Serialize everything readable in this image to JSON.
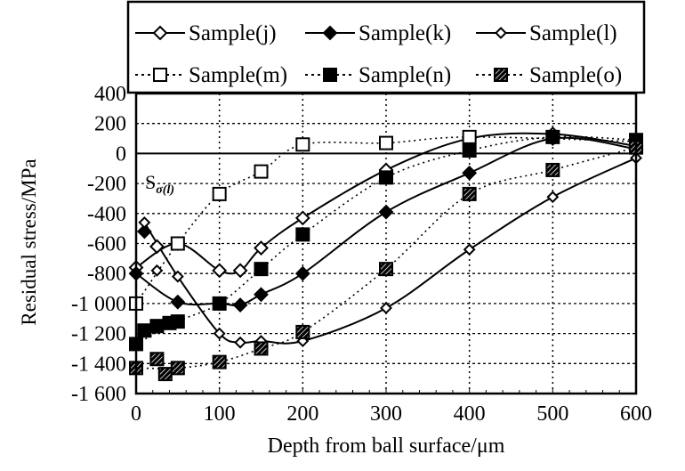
{
  "chart_data": {
    "type": "line",
    "xlabel": "Depth from ball surface/μm",
    "ylabel": "Residual stress/MPa",
    "xlim": [
      0,
      600
    ],
    "ylim": [
      -1600,
      400
    ],
    "xticks": [
      "0",
      "100",
      "200",
      "300",
      "400",
      "500",
      "600"
    ],
    "yticks": [
      "400",
      "200",
      "0",
      "-200",
      "-400",
      "-600",
      "-800",
      "-1 000",
      "-1 200",
      "-1 400",
      "-1 600"
    ],
    "grid": true,
    "legend_position": "top",
    "annotation": {
      "text": "S",
      "subscript": "σ(l)"
    },
    "series": [
      {
        "name": "Sample(j)",
        "marker": "open-diamond",
        "line": "solid",
        "x": [
          0,
          25,
          50,
          100,
          125,
          150,
          200,
          300,
          400,
          500,
          600
        ],
        "y": [
          -760,
          -620,
          -600,
          -780,
          -780,
          -630,
          -430,
          -110,
          100,
          130,
          50
        ]
      },
      {
        "name": "Sample(k)",
        "marker": "filled-diamond",
        "line": "solid",
        "x": [
          0,
          10,
          50,
          100,
          125,
          150,
          200,
          300,
          400,
          500,
          600
        ],
        "y": [
          -800,
          -520,
          -990,
          -1000,
          -1010,
          -940,
          -800,
          -390,
          -130,
          100,
          30
        ]
      },
      {
        "name": "Sample(l)",
        "marker": "small-diamond",
        "line": "solid",
        "x": [
          10,
          25,
          50,
          100,
          125,
          150,
          200,
          300,
          400,
          500,
          600
        ],
        "y": [
          -460,
          -780,
          -820,
          -1200,
          -1260,
          -1250,
          -1250,
          -1030,
          -640,
          -290,
          -30
        ]
      },
      {
        "name": "Sample(m)",
        "marker": "open-square",
        "line": "dotted",
        "x": [
          0,
          50,
          100,
          150,
          200,
          300,
          400,
          600
        ],
        "y": [
          -1000,
          -600,
          -270,
          -120,
          60,
          70,
          110,
          80
        ]
      },
      {
        "name": "Sample(n)",
        "marker": "filled-square",
        "line": "dotted",
        "x": [
          0,
          10,
          25,
          40,
          50,
          100,
          150,
          200,
          300,
          400,
          500,
          600
        ],
        "y": [
          -1270,
          -1180,
          -1150,
          -1130,
          -1120,
          -1000,
          -770,
          -540,
          -160,
          20,
          110,
          90
        ]
      },
      {
        "name": "Sample(o)",
        "marker": "hatched-square",
        "line": "dotted",
        "x": [
          0,
          25,
          35,
          50,
          100,
          150,
          200,
          300,
          400,
          500,
          600
        ],
        "y": [
          -1430,
          -1370,
          -1470,
          -1430,
          -1390,
          -1300,
          -1190,
          -770,
          -270,
          -110,
          40
        ]
      }
    ]
  }
}
